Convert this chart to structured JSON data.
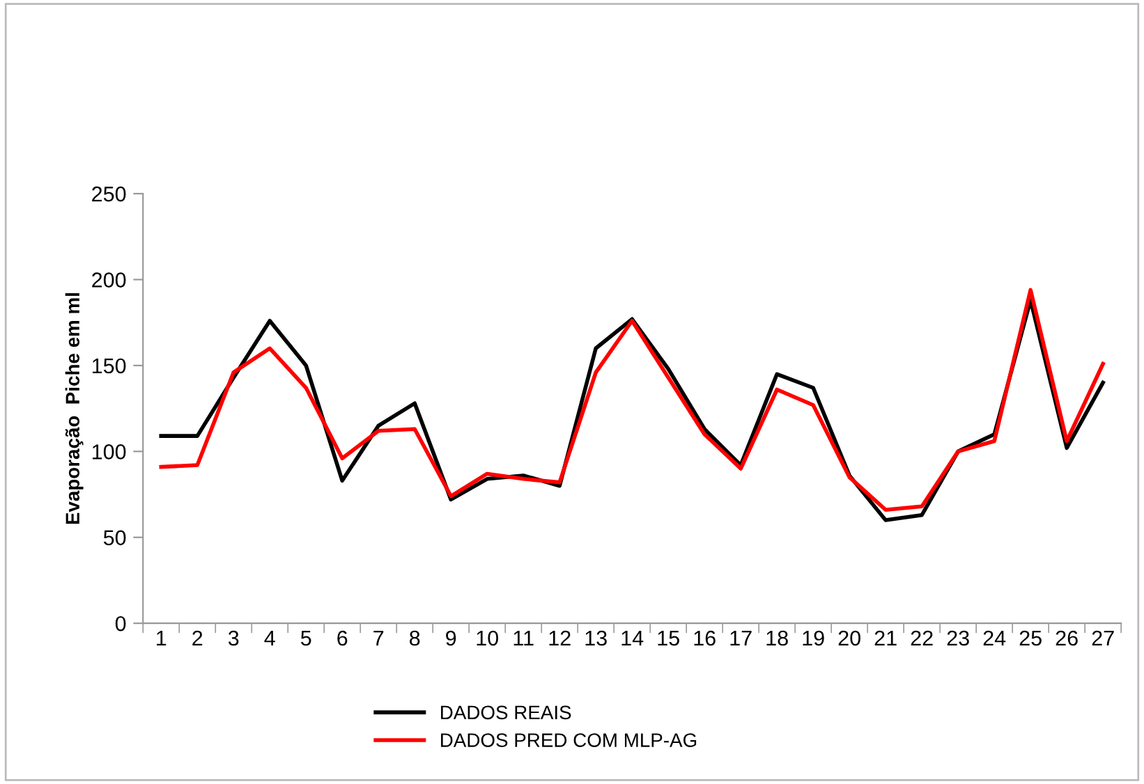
{
  "chart_data": {
    "type": "line",
    "ylabel": "Evaporação  Piche em ml",
    "categories": [
      "1",
      "2",
      "3",
      "4",
      "5",
      "6",
      "7",
      "8",
      "9",
      "10",
      "11",
      "12",
      "13",
      "14",
      "15",
      "16",
      "17",
      "18",
      "19",
      "20",
      "21",
      "22",
      "23",
      "24",
      "25",
      "26",
      "27"
    ],
    "series": [
      {
        "name": "DADOS REAIS",
        "color": "#000000",
        "values": [
          109,
          109,
          143,
          176,
          150,
          83,
          115,
          128,
          72,
          84,
          86,
          80,
          160,
          177,
          148,
          113,
          92,
          145,
          137,
          86,
          60,
          63,
          100,
          110,
          188,
          102,
          140
        ]
      },
      {
        "name": "DADOS PRED COM MLP-AG",
        "color": "#ff0000",
        "values": [
          91,
          92,
          146,
          160,
          137,
          96,
          112,
          113,
          74,
          87,
          84,
          82,
          146,
          176,
          143,
          110,
          90,
          136,
          127,
          85,
          66,
          68,
          100,
          106,
          194,
          106,
          151
        ]
      }
    ],
    "ylim": [
      0,
      250
    ],
    "yticks": [
      0,
      50,
      100,
      150,
      200,
      250
    ],
    "grid": false,
    "legend": "bottom",
    "marker": "none",
    "line_style": "solid"
  }
}
